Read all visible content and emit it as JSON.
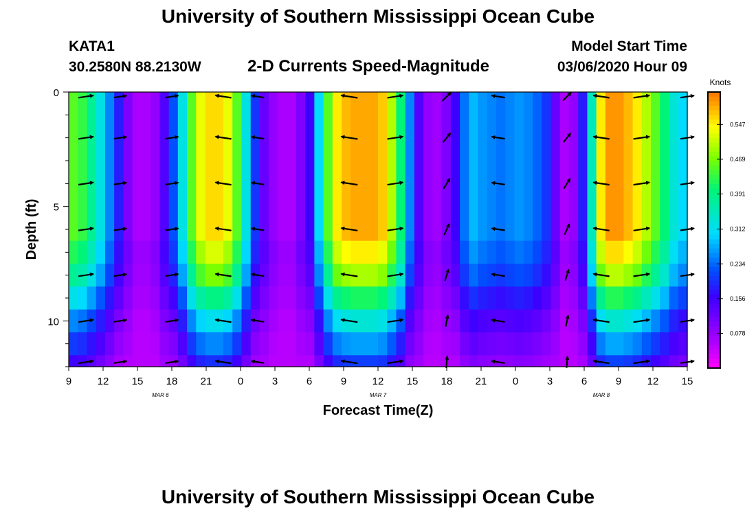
{
  "header": {
    "title": "University of Southern Mississippi Ocean Cube",
    "footer_title": "University of Southern Mississippi Ocean Cube",
    "station_id": "KATA1",
    "station_coords": "30.2580N 88.2130W",
    "model_start_label": "Model Start Time",
    "model_start_value": "03/06/2020 Hour 09"
  },
  "chart_data": {
    "type": "heatmap",
    "title": "2-D Currents Speed-Magnitude",
    "xlabel": "Forecast Time(Z)",
    "ylabel": "Depth (ft)",
    "colorbar_label": "Knots",
    "x_tick_labels": [
      "9",
      "12",
      "15",
      "18",
      "21",
      "0",
      "3",
      "6",
      "9",
      "12",
      "15",
      "18",
      "21",
      "0",
      "3",
      "6",
      "9",
      "12",
      "15"
    ],
    "date_labels": [
      {
        "text": "MAR 6",
        "forecast_hour": 8
      },
      {
        "text": "MAR 7",
        "forecast_hour": 27
      },
      {
        "text": "MAR 8",
        "forecast_hour": 46.5
      }
    ],
    "forecast_hours_range": [
      0,
      54
    ],
    "y_ticks": [
      0,
      5,
      10
    ],
    "y_range_ft": [
      0,
      12
    ],
    "colorbar_ticks": [
      0.547,
      0.469,
      0.391,
      0.312,
      0.234,
      0.156,
      0.078
    ],
    "colorbar_range": [
      0.0,
      0.62
    ],
    "depth_bands_ft": [
      0,
      6.5,
      7.5,
      8.5,
      9.5,
      10.5,
      11.5,
      12
    ],
    "speed_profile_knots": [
      0.45,
      0.43,
      0.38,
      0.32,
      0.25,
      0.18,
      0.1,
      0.06,
      0.06,
      0.08,
      0.14,
      0.22,
      0.32,
      0.45,
      0.53,
      0.56,
      0.56,
      0.53,
      0.45,
      0.32,
      0.2,
      0.12,
      0.08,
      0.06,
      0.06,
      0.1,
      0.16,
      0.3,
      0.45,
      0.55,
      0.58,
      0.59,
      0.59,
      0.59,
      0.57,
      0.5,
      0.4,
      0.25,
      0.14,
      0.08,
      0.07,
      0.1,
      0.16,
      0.24,
      0.28,
      0.26,
      0.25,
      0.24,
      0.25,
      0.26,
      0.25,
      0.23,
      0.2,
      0.12,
      0.06,
      0.08,
      0.18,
      0.35,
      0.55,
      0.6,
      0.6,
      0.58,
      0.55,
      0.5,
      0.45,
      0.4,
      0.33,
      0.3
    ],
    "depth_factor": [
      1.0,
      0.93,
      0.84,
      0.7,
      0.56,
      0.45,
      0.35
    ],
    "vector_times_hours": [
      1.5,
      4.5,
      9,
      13.5,
      16.5,
      24.5,
      28.5,
      33,
      37.5,
      43.5,
      46.5,
      50,
      54
    ],
    "vector_depths_ft": [
      0.2,
      2,
      4,
      6,
      8,
      10,
      11.8
    ]
  }
}
